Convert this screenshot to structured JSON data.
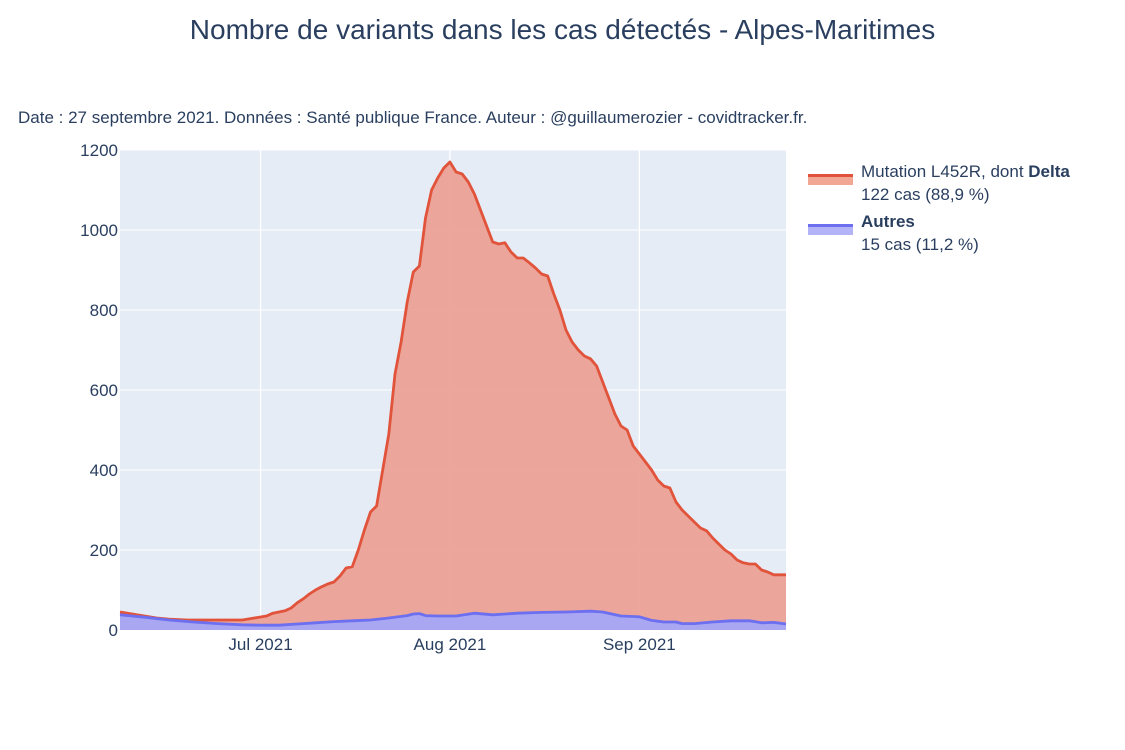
{
  "header": {
    "title": "Nombre de variants dans les cas détectés - Alpes-Maritimes",
    "subtitle": "Date : 27 septembre 2021. Données : Santé publique France. Auteur : @guillaumerozier - covidtracker.fr."
  },
  "legend": {
    "items": [
      {
        "name_prefix": "Mutation L452R, dont ",
        "name_bold": "Delta",
        "detail": "122 cas (88,9 %)",
        "line_color": "#e1533a",
        "fill_color": "#f2a694"
      },
      {
        "name_prefix": "",
        "name_bold": "Autres",
        "detail": "15 cas (11,2 %)",
        "line_color": "#6c6ff0",
        "fill_color": "#b3b4f7"
      }
    ]
  },
  "chart_data": {
    "type": "area",
    "title": "Nombre de variants dans les cas détectés - Alpes-Maritimes",
    "xlabel": "",
    "ylabel": "",
    "x_start": "2021-06-08",
    "x_end": "2021-09-25",
    "x_ticks": [
      {
        "date": "2021-07-01",
        "label": "Jul 2021"
      },
      {
        "date": "2021-08-01",
        "label": "Aug 2021"
      },
      {
        "date": "2021-09-01",
        "label": "Sep 2021"
      }
    ],
    "ylim": [
      0,
      1200
    ],
    "y_ticks": [
      0,
      200,
      400,
      600,
      800,
      1000,
      1200
    ],
    "grid": true,
    "legend_position": "right",
    "series": [
      {
        "name": "Mutation L452R, dont Delta",
        "color": "#e1533a",
        "fill": "#eba196",
        "points": [
          [
            "2021-06-08",
            45
          ],
          [
            "2021-06-10",
            40
          ],
          [
            "2021-06-12",
            35
          ],
          [
            "2021-06-14",
            30
          ],
          [
            "2021-06-16",
            27
          ],
          [
            "2021-06-19",
            25
          ],
          [
            "2021-06-22",
            25
          ],
          [
            "2021-06-25",
            25
          ],
          [
            "2021-06-28",
            25
          ],
          [
            "2021-06-30",
            30
          ],
          [
            "2021-07-02",
            35
          ],
          [
            "2021-07-03",
            42
          ],
          [
            "2021-07-04",
            45
          ],
          [
            "2021-07-05",
            48
          ],
          [
            "2021-07-06",
            55
          ],
          [
            "2021-07-07",
            68
          ],
          [
            "2021-07-08",
            78
          ],
          [
            "2021-07-09",
            90
          ],
          [
            "2021-07-10",
            100
          ],
          [
            "2021-07-11",
            108
          ],
          [
            "2021-07-12",
            115
          ],
          [
            "2021-07-13",
            120
          ],
          [
            "2021-07-14",
            135
          ],
          [
            "2021-07-15",
            155
          ],
          [
            "2021-07-16",
            158
          ],
          [
            "2021-07-17",
            200
          ],
          [
            "2021-07-18",
            250
          ],
          [
            "2021-07-19",
            295
          ],
          [
            "2021-07-20",
            310
          ],
          [
            "2021-07-21",
            400
          ],
          [
            "2021-07-22",
            490
          ],
          [
            "2021-07-23",
            640
          ],
          [
            "2021-07-24",
            720
          ],
          [
            "2021-07-25",
            820
          ],
          [
            "2021-07-26",
            895
          ],
          [
            "2021-07-27",
            910
          ],
          [
            "2021-07-28",
            1030
          ],
          [
            "2021-07-29",
            1100
          ],
          [
            "2021-07-30",
            1130
          ],
          [
            "2021-07-31",
            1155
          ],
          [
            "2021-08-01",
            1170
          ],
          [
            "2021-08-02",
            1145
          ],
          [
            "2021-08-03",
            1140
          ],
          [
            "2021-08-04",
            1120
          ],
          [
            "2021-08-05",
            1090
          ],
          [
            "2021-08-06",
            1050
          ],
          [
            "2021-08-07",
            1010
          ],
          [
            "2021-08-08",
            970
          ],
          [
            "2021-08-09",
            965
          ],
          [
            "2021-08-10",
            968
          ],
          [
            "2021-08-11",
            945
          ],
          [
            "2021-08-12",
            930
          ],
          [
            "2021-08-13",
            930
          ],
          [
            "2021-08-14",
            918
          ],
          [
            "2021-08-15",
            905
          ],
          [
            "2021-08-16",
            890
          ],
          [
            "2021-08-17",
            885
          ],
          [
            "2021-08-18",
            840
          ],
          [
            "2021-08-19",
            800
          ],
          [
            "2021-08-20",
            750
          ],
          [
            "2021-08-21",
            720
          ],
          [
            "2021-08-22",
            700
          ],
          [
            "2021-08-23",
            685
          ],
          [
            "2021-08-24",
            678
          ],
          [
            "2021-08-25",
            660
          ],
          [
            "2021-08-26",
            620
          ],
          [
            "2021-08-27",
            580
          ],
          [
            "2021-08-28",
            540
          ],
          [
            "2021-08-29",
            510
          ],
          [
            "2021-08-30",
            500
          ],
          [
            "2021-08-31",
            460
          ],
          [
            "2021-09-01",
            440
          ],
          [
            "2021-09-02",
            420
          ],
          [
            "2021-09-03",
            400
          ],
          [
            "2021-09-04",
            375
          ],
          [
            "2021-09-05",
            360
          ],
          [
            "2021-09-06",
            355
          ],
          [
            "2021-09-07",
            320
          ],
          [
            "2021-09-08",
            300
          ],
          [
            "2021-09-09",
            285
          ],
          [
            "2021-09-10",
            270
          ],
          [
            "2021-09-11",
            255
          ],
          [
            "2021-09-12",
            248
          ],
          [
            "2021-09-13",
            230
          ],
          [
            "2021-09-14",
            215
          ],
          [
            "2021-09-15",
            200
          ],
          [
            "2021-09-16",
            190
          ],
          [
            "2021-09-17",
            175
          ],
          [
            "2021-09-18",
            168
          ],
          [
            "2021-09-19",
            165
          ],
          [
            "2021-09-20",
            165
          ],
          [
            "2021-09-21",
            150
          ],
          [
            "2021-09-22",
            145
          ],
          [
            "2021-09-23",
            138
          ],
          [
            "2021-09-25",
            138
          ]
        ]
      },
      {
        "name": "Autres",
        "color": "#6c6ff0",
        "fill": "#a5a7f7",
        "points": [
          [
            "2021-06-08",
            38
          ],
          [
            "2021-06-12",
            32
          ],
          [
            "2021-06-16",
            25
          ],
          [
            "2021-06-20",
            20
          ],
          [
            "2021-06-24",
            16
          ],
          [
            "2021-06-28",
            13
          ],
          [
            "2021-07-01",
            12
          ],
          [
            "2021-07-04",
            12
          ],
          [
            "2021-07-07",
            15
          ],
          [
            "2021-07-10",
            18
          ],
          [
            "2021-07-13",
            21
          ],
          [
            "2021-07-16",
            23
          ],
          [
            "2021-07-19",
            25
          ],
          [
            "2021-07-22",
            30
          ],
          [
            "2021-07-25",
            36
          ],
          [
            "2021-07-26",
            40
          ],
          [
            "2021-07-27",
            41
          ],
          [
            "2021-07-28",
            36
          ],
          [
            "2021-07-30",
            35
          ],
          [
            "2021-08-02",
            35
          ],
          [
            "2021-08-05",
            42
          ],
          [
            "2021-08-08",
            38
          ],
          [
            "2021-08-12",
            42
          ],
          [
            "2021-08-16",
            44
          ],
          [
            "2021-08-20",
            45
          ],
          [
            "2021-08-24",
            47
          ],
          [
            "2021-08-26",
            45
          ],
          [
            "2021-08-29",
            35
          ],
          [
            "2021-09-01",
            33
          ],
          [
            "2021-09-03",
            24
          ],
          [
            "2021-09-05",
            20
          ],
          [
            "2021-09-07",
            20
          ],
          [
            "2021-09-08",
            16
          ],
          [
            "2021-09-10",
            16
          ],
          [
            "2021-09-13",
            20
          ],
          [
            "2021-09-16",
            23
          ],
          [
            "2021-09-19",
            23
          ],
          [
            "2021-09-21",
            18
          ],
          [
            "2021-09-23",
            19
          ],
          [
            "2021-09-25",
            15
          ]
        ]
      }
    ]
  }
}
